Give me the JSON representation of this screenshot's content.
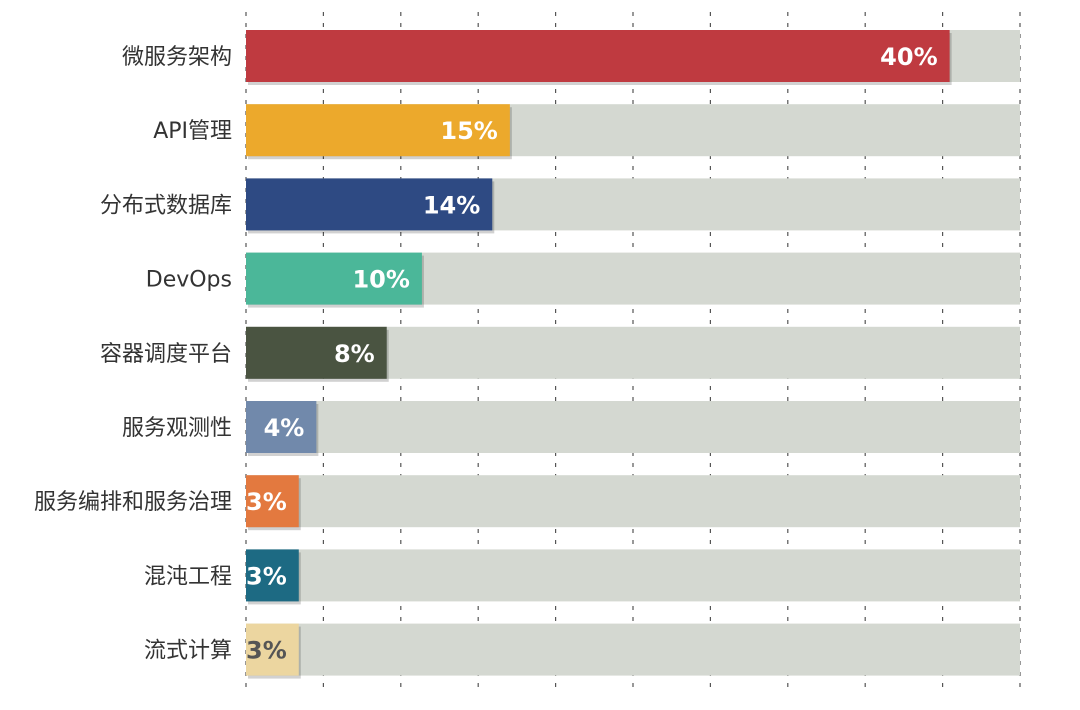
{
  "chart_data": {
    "type": "bar",
    "orientation": "horizontal",
    "title": "",
    "xlabel": "",
    "ylabel": "",
    "xlim": [
      0,
      44
    ],
    "grid": true,
    "legend": "none",
    "categories": [
      "微服务架构",
      "API管理",
      "分布式数据库",
      "DevOps",
      "容器调度平台",
      "服务观测性",
      "服务编排和服务治理",
      "混沌工程",
      "流式计算"
    ],
    "values": [
      40,
      15,
      14,
      10,
      8,
      4,
      3,
      3,
      3
    ],
    "value_labels": [
      "40%",
      "15%",
      "14%",
      "10%",
      "8%",
      "4%",
      "3%",
      "3%",
      "3%"
    ],
    "colors": [
      "#bf3a40",
      "#eca92c",
      "#2e4a83",
      "#4bb799",
      "#4a5441",
      "#7189ab",
      "#e3793f",
      "#1d6a83",
      "#ecd6a0"
    ],
    "label_colors": [
      "#ffffff",
      "#ffffff",
      "#ffffff",
      "#ffffff",
      "#ffffff",
      "#ffffff",
      "#ffffff",
      "#ffffff",
      "#555555"
    ],
    "track_color": "#d4d8d1"
  }
}
